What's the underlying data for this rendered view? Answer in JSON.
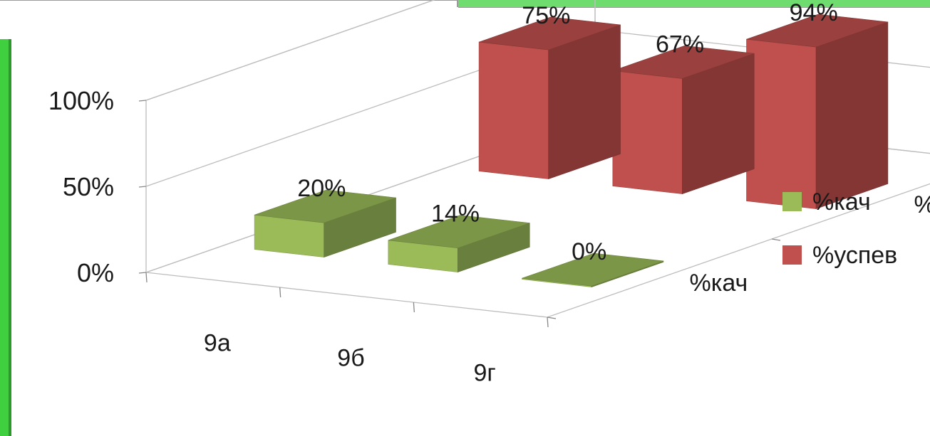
{
  "chart_data": {
    "type": "bar",
    "variant": "3d-clustered-rows",
    "categories": [
      "9а",
      "9б",
      "9г"
    ],
    "depth_categories": [
      "%кач",
      "%успев"
    ],
    "series": [
      {
        "name": "%кач",
        "values": [
          20,
          14,
          0
        ],
        "labels": [
          "20%",
          "14%",
          "0%"
        ],
        "color": "#9bbb59"
      },
      {
        "name": "%успев",
        "values": [
          75,
          67,
          94
        ],
        "labels": [
          "75%",
          "67%",
          "94%"
        ],
        "color": "#c0504d"
      }
    ],
    "y_ticks": [
      {
        "value": 0,
        "label": "0%"
      },
      {
        "value": 50,
        "label": "50%"
      },
      {
        "value": 100,
        "label": "100%"
      }
    ],
    "ylim": [
      0,
      100
    ],
    "grid": true,
    "legend": {
      "position": "right",
      "items": [
        {
          "label": "%кач",
          "color": "#9bbb59"
        },
        {
          "label": "%успев",
          "color": "#c0504d"
        }
      ]
    },
    "title": "",
    "xlabel": "",
    "ylabel": ""
  }
}
